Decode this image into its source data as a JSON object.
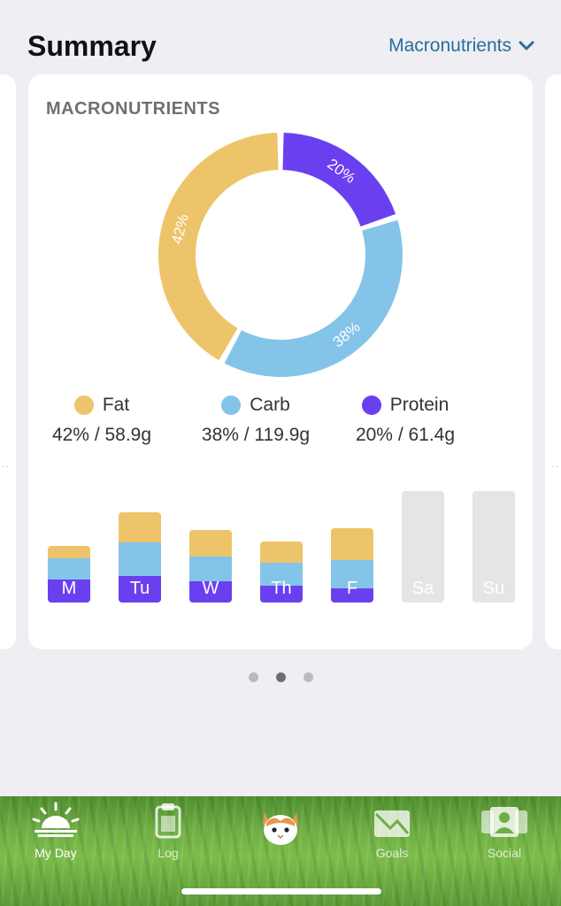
{
  "header": {
    "title": "Summary",
    "picker_label": "Macronutrients"
  },
  "card": {
    "title": "MACRONUTRIENTS"
  },
  "colors": {
    "fat": "#eec46a",
    "carb": "#84c4e8",
    "protein": "#6a3ff0",
    "empty": "#e5e5e7",
    "accent": "#2a6d9c"
  },
  "chart_data": [
    {
      "type": "pie",
      "title": "",
      "labels": [
        "Protein",
        "Carb",
        "Fat"
      ],
      "values": [
        20,
        38,
        42
      ],
      "value_labels": [
        "20%",
        "38%",
        "42%"
      ],
      "style": "donut"
    },
    {
      "type": "bar",
      "title": "",
      "stacked": true,
      "categories": [
        "M",
        "Tu",
        "W",
        "Th",
        "F",
        "Sa",
        "Su"
      ],
      "series": [
        {
          "name": "Protein",
          "values": [
            26,
            30,
            24,
            19,
            16,
            0,
            0
          ]
        },
        {
          "name": "Carb",
          "values": [
            24,
            38,
            28,
            26,
            32,
            0,
            0
          ]
        },
        {
          "name": "Fat",
          "values": [
            14,
            34,
            30,
            24,
            36,
            0,
            0
          ]
        }
      ],
      "empty_days": [
        "Sa",
        "Su"
      ]
    }
  ],
  "legend": [
    {
      "name": "Fat",
      "value": "42% / 58.9g",
      "color": "#eec46a"
    },
    {
      "name": "Carb",
      "value": "38% / 119.9g",
      "color": "#84c4e8"
    },
    {
      "name": "Protein",
      "value": "20% / 61.4g",
      "color": "#6a3ff0"
    }
  ],
  "pager": {
    "count": 3,
    "active": 1
  },
  "tabbar": {
    "tabs": [
      {
        "label": "My Day",
        "icon": "sunrise-icon",
        "active": true
      },
      {
        "label": "Log",
        "icon": "clipboard-icon",
        "active": false
      },
      {
        "label": "",
        "icon": "cat-mascot-icon",
        "active": false
      },
      {
        "label": "Goals",
        "icon": "chart-envelope-icon",
        "active": false
      },
      {
        "label": "Social",
        "icon": "people-icon",
        "active": false
      }
    ]
  }
}
